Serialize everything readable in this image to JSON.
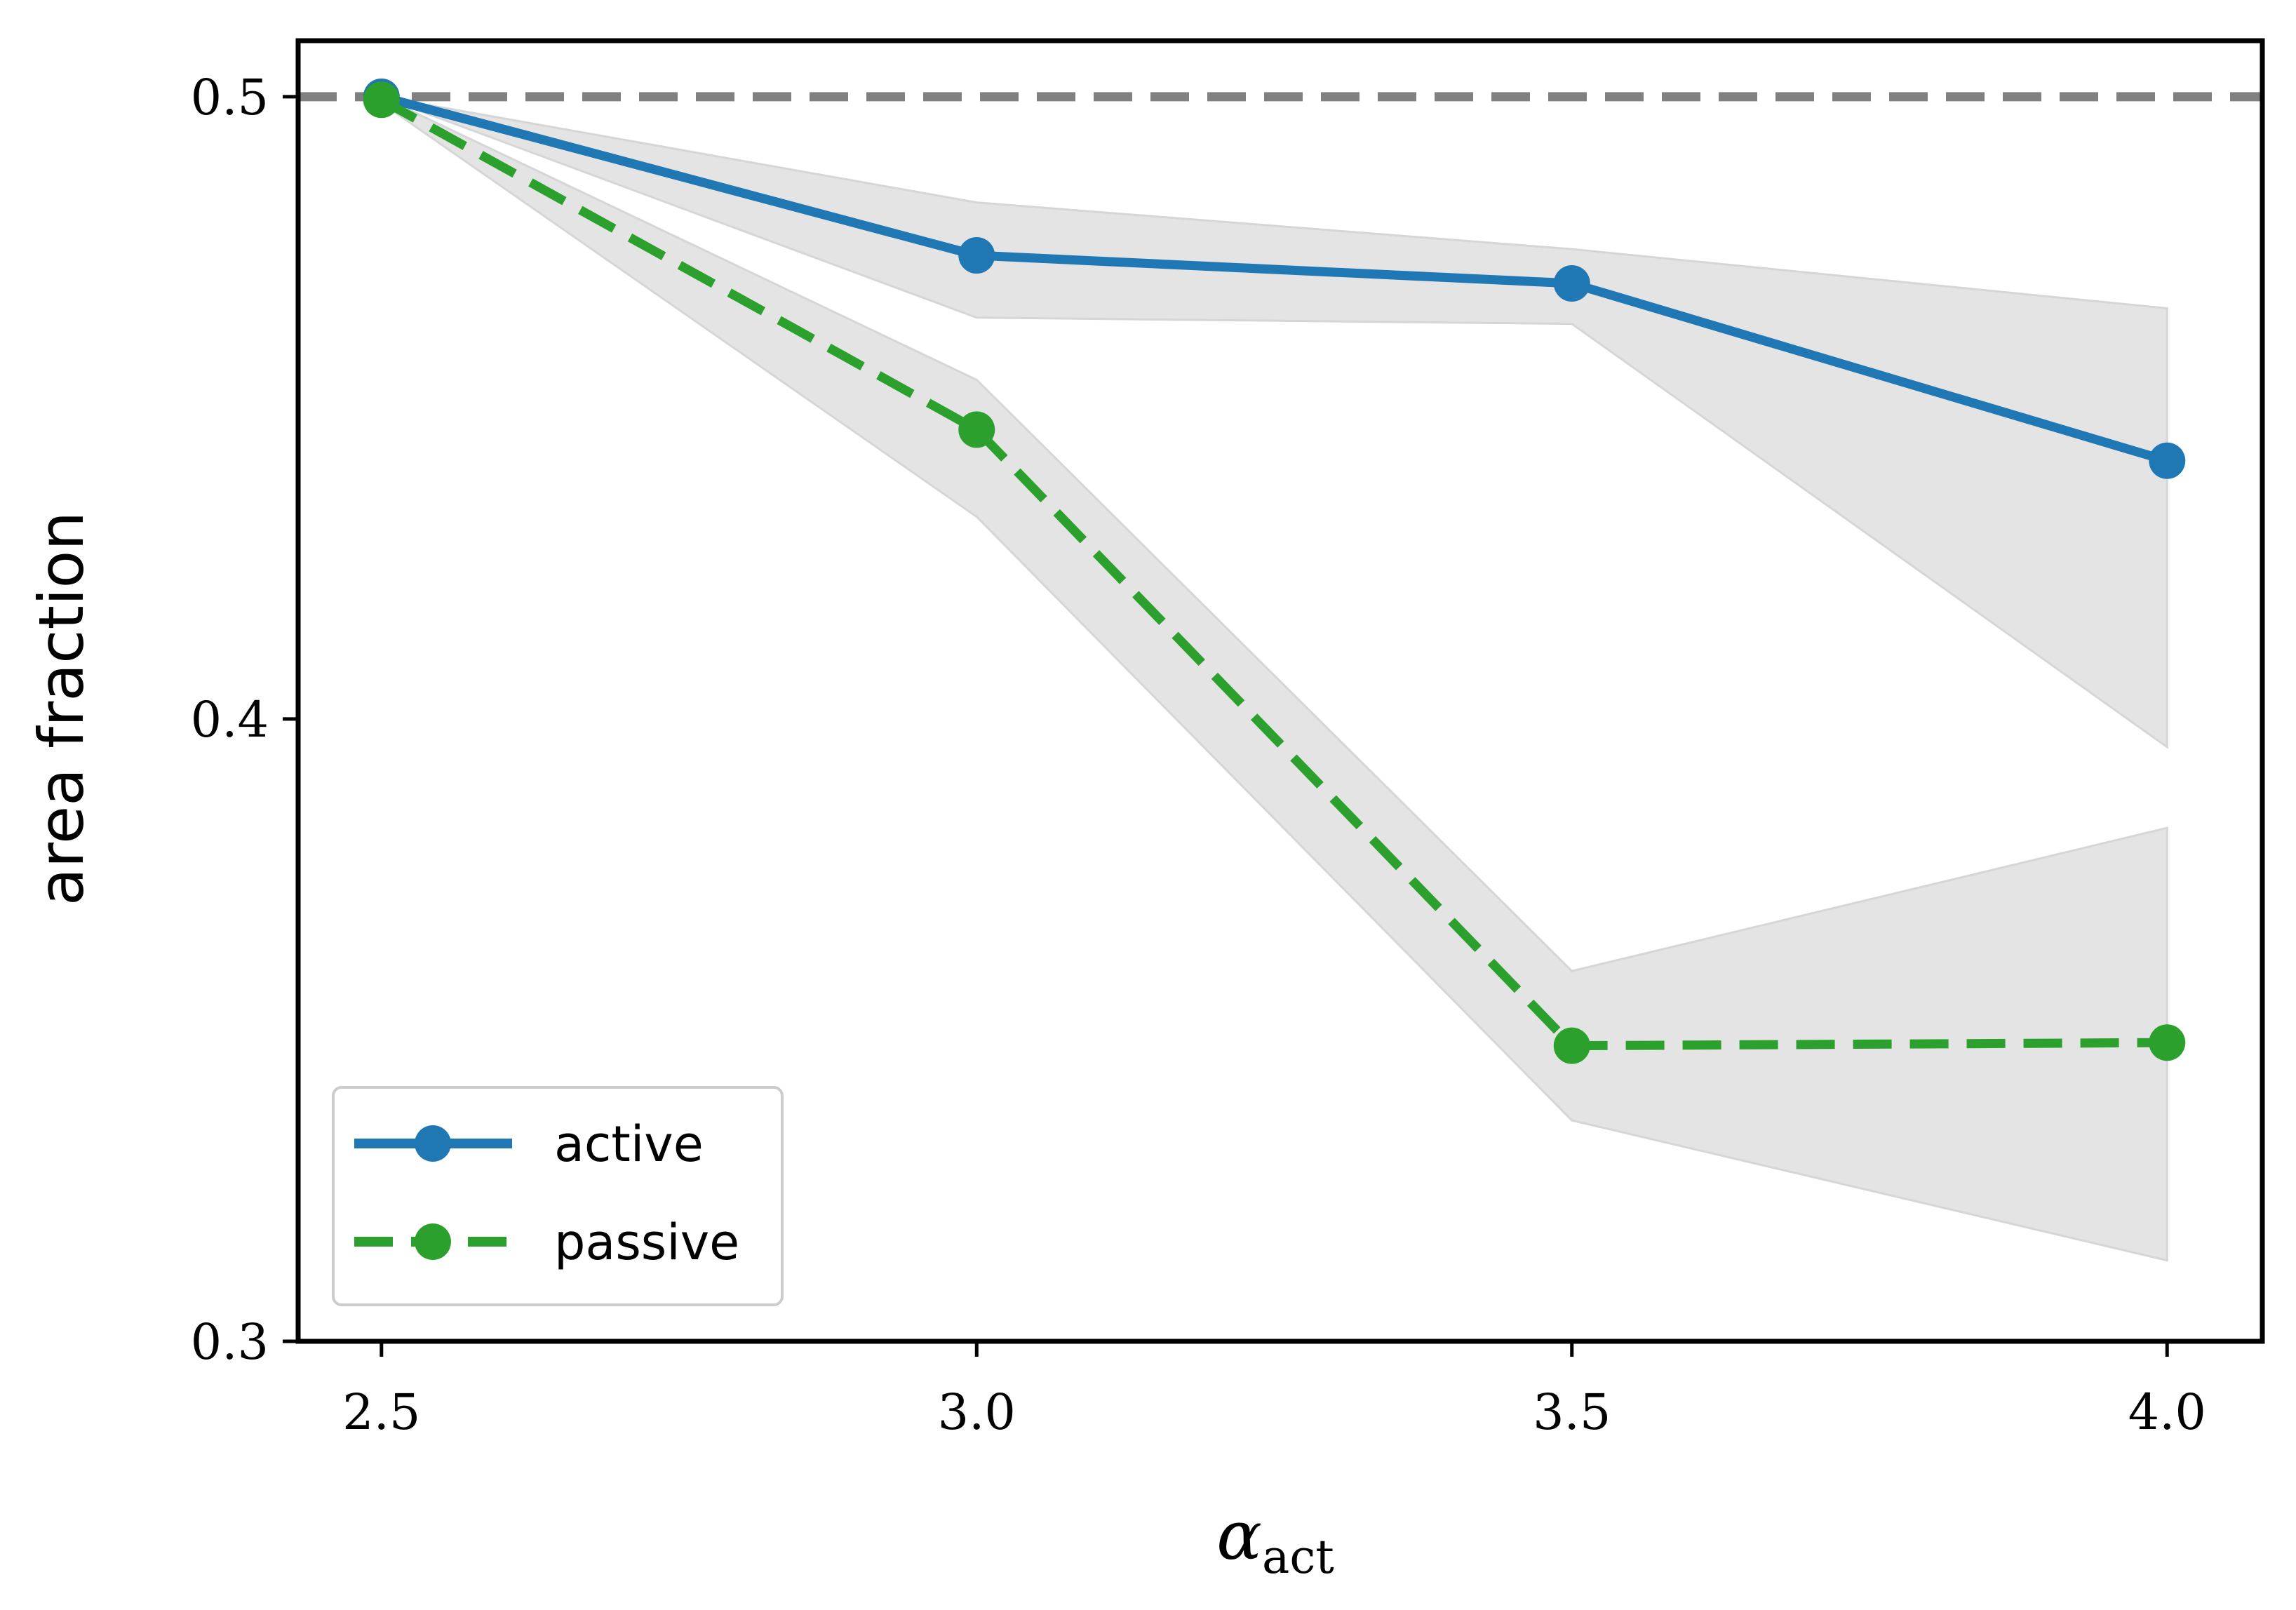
{
  "chart_data": {
    "type": "line",
    "title": "",
    "xlabel": "α",
    "xlabel_subscript": "act",
    "ylabel": "area fraction",
    "x": [
      2.5,
      3.0,
      3.5,
      4.0
    ],
    "xlim": [
      2.43,
      4.08
    ],
    "ylim": [
      0.3,
      0.509
    ],
    "xticks": [
      2.5,
      3.0,
      3.5,
      4.0
    ],
    "xtick_labels": [
      "2.5",
      "3.0",
      "3.5",
      "4.0"
    ],
    "yticks": [
      0.3,
      0.4,
      0.5
    ],
    "ytick_labels": [
      "0.3",
      "0.4",
      "0.5"
    ],
    "grid": false,
    "reference_line": {
      "y": 0.5,
      "color": "#808080",
      "style": "dashed"
    },
    "series": [
      {
        "name": "active",
        "color": "#1f77b4",
        "style": "solid",
        "values": [
          0.5,
          0.4745,
          0.47,
          0.4415
        ],
        "band_upper": [
          0.5,
          0.483,
          0.4755,
          0.466
        ],
        "band_lower": [
          0.5,
          0.4645,
          0.4635,
          0.3955
        ]
      },
      {
        "name": "passive",
        "color": "#2ca02c",
        "style": "dashed",
        "values": [
          0.4995,
          0.4465,
          0.3475,
          0.348
        ],
        "band_upper": [
          0.5,
          0.4545,
          0.3595,
          0.3825
        ],
        "band_lower": [
          0.499,
          0.4325,
          0.3355,
          0.313
        ]
      }
    ],
    "band_color": "#e4e4e4",
    "legend": {
      "location": "lower-left",
      "entries": [
        "active",
        "passive"
      ]
    }
  }
}
